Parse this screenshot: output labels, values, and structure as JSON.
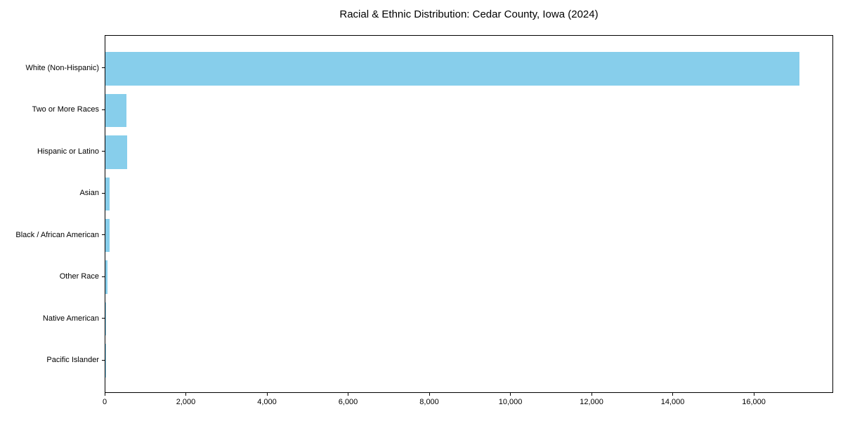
{
  "figure": {
    "background": "#ffffff"
  },
  "chart_data": {
    "type": "bar",
    "orientation": "horizontal",
    "title": "Racial & Ethnic Distribution: Cedar County, Iowa (2024)",
    "categories": [
      "White (Non-Hispanic)",
      "Two or More Races",
      "Hispanic or Latino",
      "Asian",
      "Black / African American",
      "Other Race",
      "Native American",
      "Pacific Islander"
    ],
    "values": [
      17100,
      520,
      535,
      105,
      100,
      50,
      15,
      5
    ],
    "bar_color": "#87ceeb",
    "xlabel": "",
    "ylabel": "",
    "xlim": [
      0,
      17955
    ],
    "xticks": [
      0,
      2000,
      4000,
      6000,
      8000,
      10000,
      12000,
      14000,
      16000
    ],
    "xtick_labels": [
      "0",
      "2,000",
      "4,000",
      "6,000",
      "8,000",
      "10,000",
      "12,000",
      "14,000",
      "16,000"
    ],
    "grid": false,
    "legend": null,
    "axis_color": "#000000",
    "text_color": "#000000"
  }
}
